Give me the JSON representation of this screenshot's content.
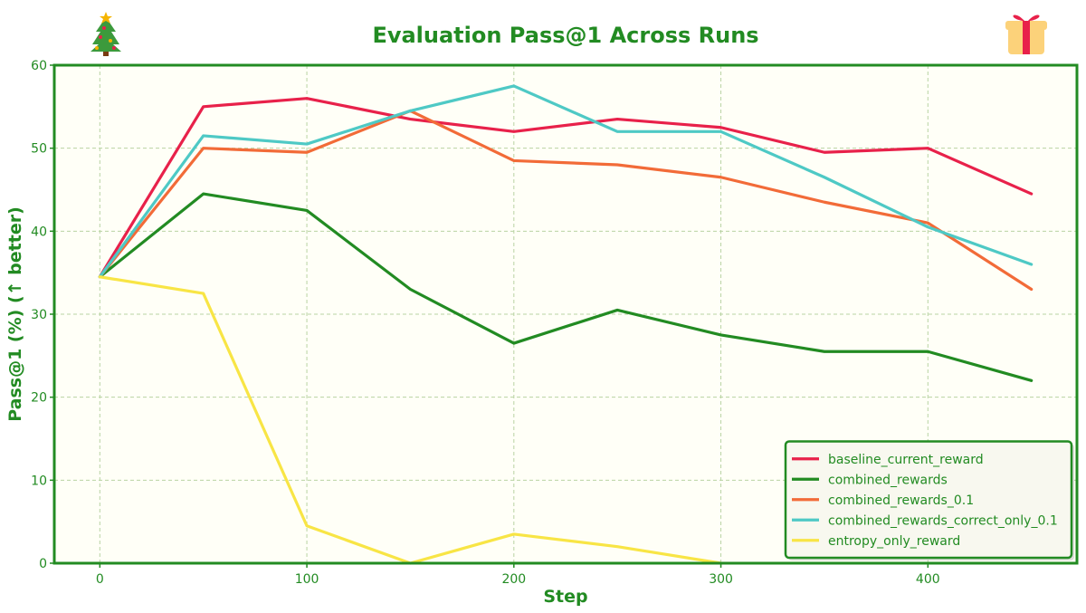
{
  "colors": {
    "accent": "#228b22",
    "plot_bg": "#fffff7",
    "grid": "#b9d3a3",
    "legend_bg": "#f8f8ef"
  },
  "decorations": {
    "left_icon": "christmas-tree-icon",
    "right_icon": "gift-icon"
  },
  "chart_data": {
    "type": "line",
    "title": "Evaluation Pass@1 Across Runs",
    "xlabel": "Step",
    "ylabel": "Pass@1 (%) (↑ better)",
    "xlim": [
      -22,
      472
    ],
    "ylim": [
      0,
      60
    ],
    "xticks": [
      0,
      100,
      200,
      300,
      400
    ],
    "yticks": [
      0,
      10,
      20,
      30,
      40,
      50,
      60
    ],
    "grid": true,
    "legend_position": "bottom-right",
    "x": [
      0,
      50,
      100,
      150,
      200,
      250,
      300,
      350,
      400,
      450
    ],
    "series": [
      {
        "name": "baseline_current_reward",
        "color": "#e8214a",
        "values": [
          34.5,
          55.0,
          56.0,
          53.5,
          52.0,
          53.5,
          52.5,
          49.5,
          50.0,
          44.5
        ]
      },
      {
        "name": "combined_rewards",
        "color": "#228b22",
        "values": [
          34.5,
          44.5,
          42.5,
          33.0,
          26.5,
          30.5,
          27.5,
          25.5,
          25.5,
          22.0
        ]
      },
      {
        "name": "combined_rewards_0.1",
        "color": "#f26b38",
        "values": [
          34.5,
          50.0,
          49.5,
          54.5,
          48.5,
          48.0,
          46.5,
          43.5,
          41.0,
          33.0
        ]
      },
      {
        "name": "combined_rewards_correct_only_0.1",
        "color": "#4ec9c5",
        "values": [
          34.5,
          51.5,
          50.5,
          54.5,
          57.5,
          52.0,
          52.0,
          46.5,
          40.5,
          36.0
        ]
      },
      {
        "name": "entropy_only_reward",
        "color": "#f8e545",
        "values": [
          34.5,
          32.5,
          4.5,
          0.0,
          3.5,
          2.0,
          0.0,
          null,
          null,
          null
        ]
      }
    ]
  }
}
